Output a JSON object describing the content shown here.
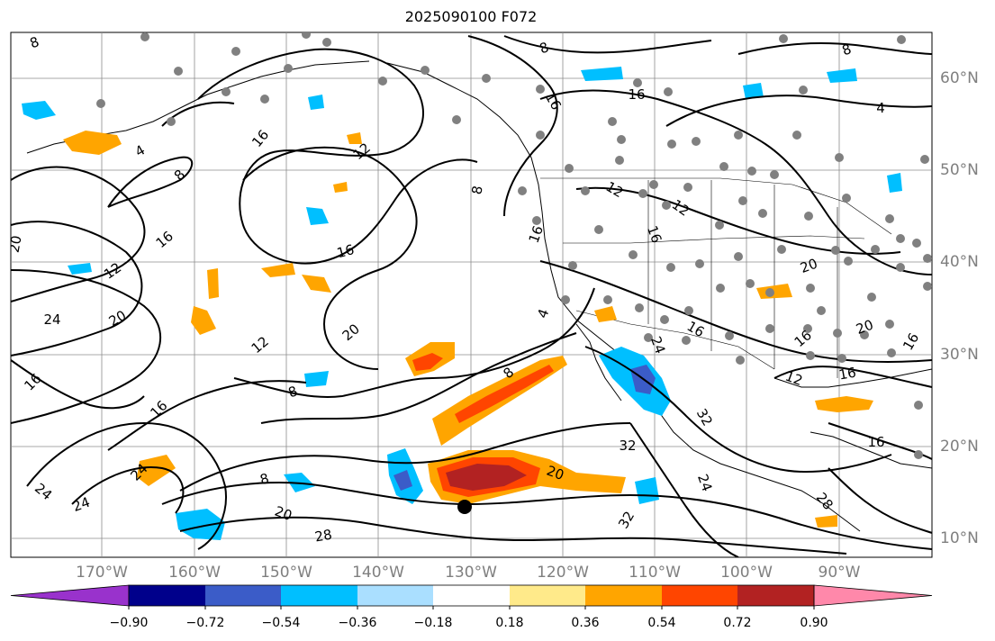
{
  "title": "2025090100 F072",
  "lon_labels": [
    "170°W",
    "160°W",
    "150°W",
    "140°W",
    "130°W",
    "120°W",
    "110°W",
    "100°W",
    "90°W"
  ],
  "lat_labels": [
    "60°N",
    "50°N",
    "40°N",
    "30°N",
    "20°N",
    "10°N"
  ],
  "contour_labels": [
    "4",
    "8",
    "12",
    "16",
    "20",
    "24",
    "28",
    "32"
  ],
  "colorbar": {
    "ticks": [
      "−0.90",
      "−0.72",
      "−0.54",
      "−0.36",
      "−0.18",
      "0.18",
      "0.36",
      "0.54",
      "0.72",
      "0.90"
    ],
    "colors": [
      "#9932cc",
      "#00008b",
      "#3b5cc8",
      "#00bfff",
      "#aadfff",
      "#ffffff",
      "#ffea8a",
      "#ffa500",
      "#ff4500",
      "#b22222",
      "#ff88aa"
    ]
  },
  "colors": {
    "contour": "#000000",
    "grid": "#8c8c8c",
    "station_dot": "#808080",
    "label_gray": "#7f7f7f"
  },
  "markers": {
    "storm_center": "black-circle"
  }
}
